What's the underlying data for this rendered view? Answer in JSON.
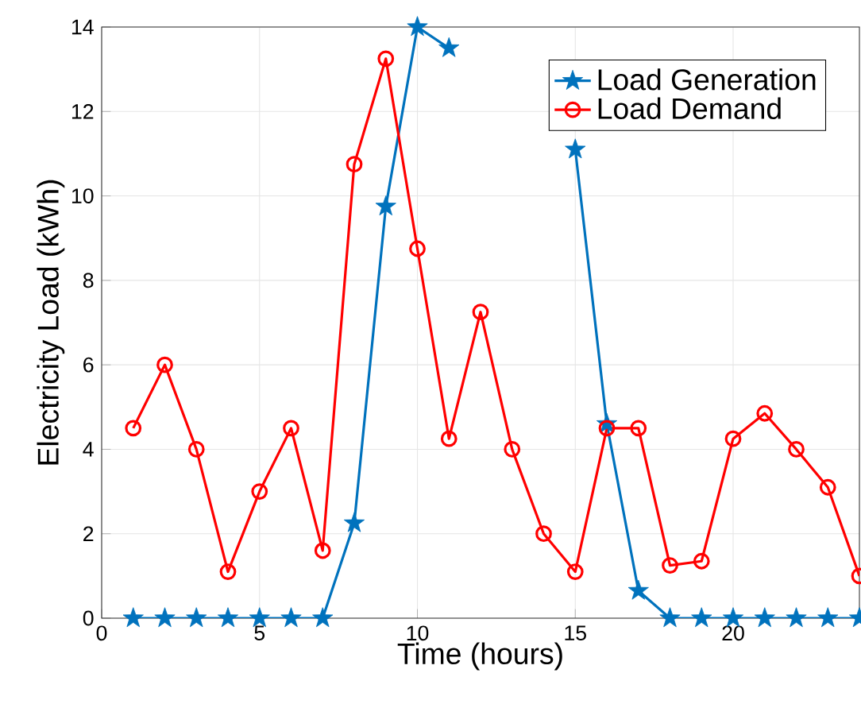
{
  "chart_data": {
    "type": "line",
    "xlabel": "Time (hours)",
    "ylabel": "Electricity Load (kWh)",
    "x": [
      1,
      2,
      3,
      4,
      5,
      6,
      7,
      8,
      9,
      10,
      11,
      12,
      13,
      14,
      15,
      16,
      17,
      18,
      19,
      20,
      21,
      22,
      23,
      24
    ],
    "series": [
      {
        "name": "Load Generation",
        "color": "#0072bd",
        "marker": "star",
        "values": [
          0,
          0,
          0,
          0,
          0,
          0,
          0,
          2.25,
          9.75,
          14,
          13.5,
          null,
          null,
          null,
          11.1,
          4.6,
          0.65,
          0,
          0,
          0,
          0,
          0,
          0,
          0
        ]
      },
      {
        "name": "Load Demand",
        "color": "#ff0000",
        "marker": "circle",
        "values": [
          4.5,
          6,
          4,
          1.1,
          3,
          4.5,
          1.6,
          10.75,
          13.25,
          8.75,
          4.25,
          7.25,
          4,
          2,
          1.1,
          4.5,
          4.5,
          1.25,
          1.35,
          4.25,
          4.85,
          4,
          3.1,
          1.0
        ]
      }
    ],
    "xlim": [
      0,
      24
    ],
    "ylim": [
      0,
      14
    ],
    "xticks": [
      0,
      5,
      10,
      15,
      20
    ],
    "yticks": [
      0,
      2,
      4,
      6,
      8,
      10,
      12,
      14
    ],
    "grid": true,
    "legend": "top right",
    "line_style": "solid"
  }
}
